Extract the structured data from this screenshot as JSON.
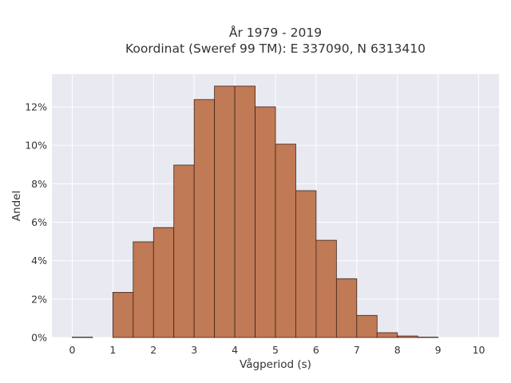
{
  "chart_data": {
    "type": "bar",
    "title": "År 1979 - 2019",
    "subtitle": "Koordinat (Sweref 99 TM): E 337090, N 6313410",
    "xlabel": "Vågperiod (s)",
    "ylabel": "Andel",
    "xlim": [
      -0.5,
      10.5
    ],
    "ylim": [
      0,
      13.7
    ],
    "x_ticks": [
      0,
      1,
      2,
      3,
      4,
      5,
      6,
      7,
      8,
      9,
      10
    ],
    "y_ticks": [
      0,
      2,
      4,
      6,
      8,
      10,
      12
    ],
    "y_tick_suffix": "%",
    "bin_width": 0.5,
    "bins": [
      {
        "x0": 0.0,
        "value": 0.02
      },
      {
        "x0": 1.0,
        "value": 2.35
      },
      {
        "x0": 1.5,
        "value": 4.98
      },
      {
        "x0": 2.0,
        "value": 5.72
      },
      {
        "x0": 2.5,
        "value": 8.97
      },
      {
        "x0": 3.0,
        "value": 12.38
      },
      {
        "x0": 3.5,
        "value": 13.08
      },
      {
        "x0": 4.0,
        "value": 13.08
      },
      {
        "x0": 4.5,
        "value": 12.0
      },
      {
        "x0": 5.0,
        "value": 10.06
      },
      {
        "x0": 5.5,
        "value": 7.64
      },
      {
        "x0": 6.0,
        "value": 5.06
      },
      {
        "x0": 6.5,
        "value": 3.06
      },
      {
        "x0": 7.0,
        "value": 1.15
      },
      {
        "x0": 7.5,
        "value": 0.25
      },
      {
        "x0": 8.0,
        "value": 0.08
      },
      {
        "x0": 8.5,
        "value": 0.02
      }
    ],
    "grid": true,
    "colors": {
      "plot_background": "#e8e9f1",
      "grid": "#ffffff",
      "bar_fill": "#c07a55",
      "bar_stroke": "#3d2418"
    }
  }
}
